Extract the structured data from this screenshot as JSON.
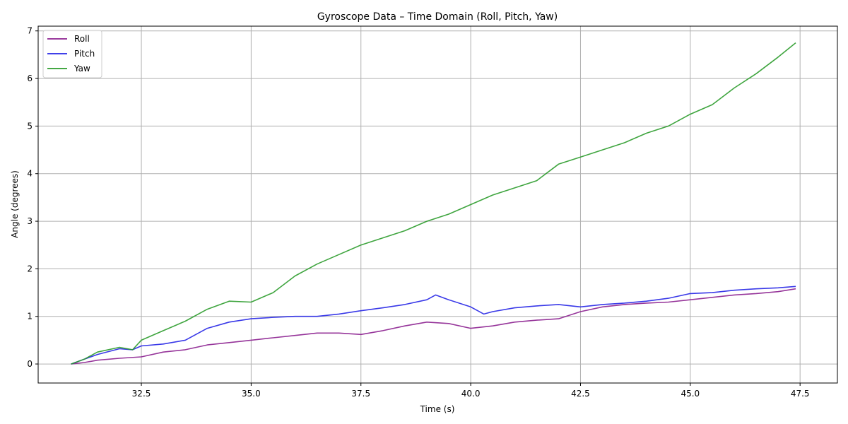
{
  "chart_data": {
    "type": "line",
    "title": "Gyroscope Data – Time Domain (Roll, Pitch, Yaw)",
    "xlabel": "Time (s)",
    "ylabel": "Angle (degrees)",
    "xlim": [
      30.15,
      48.35
    ],
    "ylim": [
      -0.4,
      7.1
    ],
    "xticks": [
      32.5,
      35.0,
      37.5,
      40.0,
      42.5,
      45.0,
      47.5
    ],
    "xtick_labels": [
      "32.5",
      "35.0",
      "37.5",
      "40.0",
      "42.5",
      "45.0",
      "47.5"
    ],
    "yticks": [
      0,
      1,
      2,
      3,
      4,
      5,
      6,
      7
    ],
    "ytick_labels": [
      "0",
      "1",
      "2",
      "3",
      "4",
      "5",
      "6",
      "7"
    ],
    "grid": true,
    "legend_position": "top-left",
    "series": [
      {
        "name": "Roll",
        "color": "#8b1f8f",
        "x": [
          30.9,
          31.2,
          31.5,
          32.0,
          32.5,
          33.0,
          33.5,
          34.0,
          34.5,
          35.0,
          35.5,
          36.0,
          36.5,
          37.0,
          37.5,
          38.0,
          38.5,
          39.0,
          39.5,
          40.0,
          40.5,
          41.0,
          41.5,
          42.0,
          42.5,
          43.0,
          43.5,
          44.0,
          44.5,
          45.0,
          45.5,
          46.0,
          46.5,
          47.0,
          47.4
        ],
        "values": [
          0.0,
          0.03,
          0.08,
          0.12,
          0.15,
          0.25,
          0.3,
          0.4,
          0.45,
          0.5,
          0.55,
          0.6,
          0.65,
          0.65,
          0.62,
          0.7,
          0.8,
          0.88,
          0.85,
          0.75,
          0.8,
          0.88,
          0.92,
          0.95,
          1.1,
          1.2,
          1.25,
          1.28,
          1.3,
          1.35,
          1.4,
          1.45,
          1.48,
          1.52,
          1.58
        ]
      },
      {
        "name": "Pitch",
        "color": "#2424e6",
        "x": [
          30.9,
          31.2,
          31.5,
          32.0,
          32.3,
          32.5,
          33.0,
          33.5,
          34.0,
          34.5,
          35.0,
          35.5,
          36.0,
          36.5,
          37.0,
          37.5,
          38.0,
          38.5,
          39.0,
          39.2,
          39.5,
          40.0,
          40.3,
          40.5,
          41.0,
          41.5,
          42.0,
          42.5,
          43.0,
          43.5,
          44.0,
          44.5,
          45.0,
          45.5,
          46.0,
          46.5,
          47.0,
          47.4
        ],
        "values": [
          0.0,
          0.1,
          0.2,
          0.32,
          0.3,
          0.38,
          0.42,
          0.5,
          0.75,
          0.88,
          0.95,
          0.98,
          1.0,
          1.0,
          1.05,
          1.12,
          1.18,
          1.25,
          1.35,
          1.45,
          1.35,
          1.2,
          1.05,
          1.1,
          1.18,
          1.22,
          1.25,
          1.2,
          1.25,
          1.28,
          1.32,
          1.38,
          1.48,
          1.5,
          1.55,
          1.58,
          1.6,
          1.63
        ]
      },
      {
        "name": "Yaw",
        "color": "#2a9b2a",
        "x": [
          30.9,
          31.2,
          31.5,
          32.0,
          32.3,
          32.5,
          33.0,
          33.5,
          34.0,
          34.5,
          35.0,
          35.5,
          36.0,
          36.5,
          37.0,
          37.5,
          38.0,
          38.5,
          39.0,
          39.5,
          40.0,
          40.5,
          41.0,
          41.5,
          42.0,
          42.5,
          43.0,
          43.5,
          44.0,
          44.5,
          45.0,
          45.5,
          46.0,
          46.5,
          47.0,
          47.4
        ],
        "values": [
          0.0,
          0.1,
          0.25,
          0.35,
          0.3,
          0.5,
          0.7,
          0.9,
          1.15,
          1.32,
          1.3,
          1.5,
          1.85,
          2.1,
          2.3,
          2.5,
          2.65,
          2.8,
          3.0,
          3.15,
          3.35,
          3.55,
          3.7,
          3.85,
          4.2,
          4.35,
          4.5,
          4.65,
          4.85,
          5.0,
          5.25,
          5.45,
          5.8,
          6.1,
          6.45,
          6.75
        ]
      }
    ]
  }
}
